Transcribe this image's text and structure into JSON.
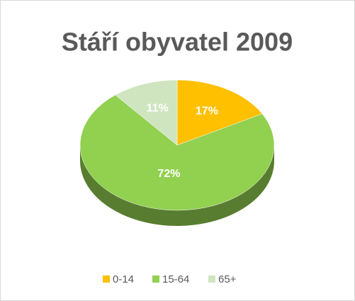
{
  "chart_data": {
    "type": "pie",
    "title": "Stáří obyvatel 2009",
    "categories": [
      "0-14",
      "15-64",
      "65+"
    ],
    "values": [
      17,
      72,
      11
    ],
    "value_labels": [
      "17%",
      "72%",
      "11%"
    ],
    "colors": [
      "#ffc000",
      "#92d050",
      "#cfe5bf"
    ],
    "legend": "bottom"
  }
}
